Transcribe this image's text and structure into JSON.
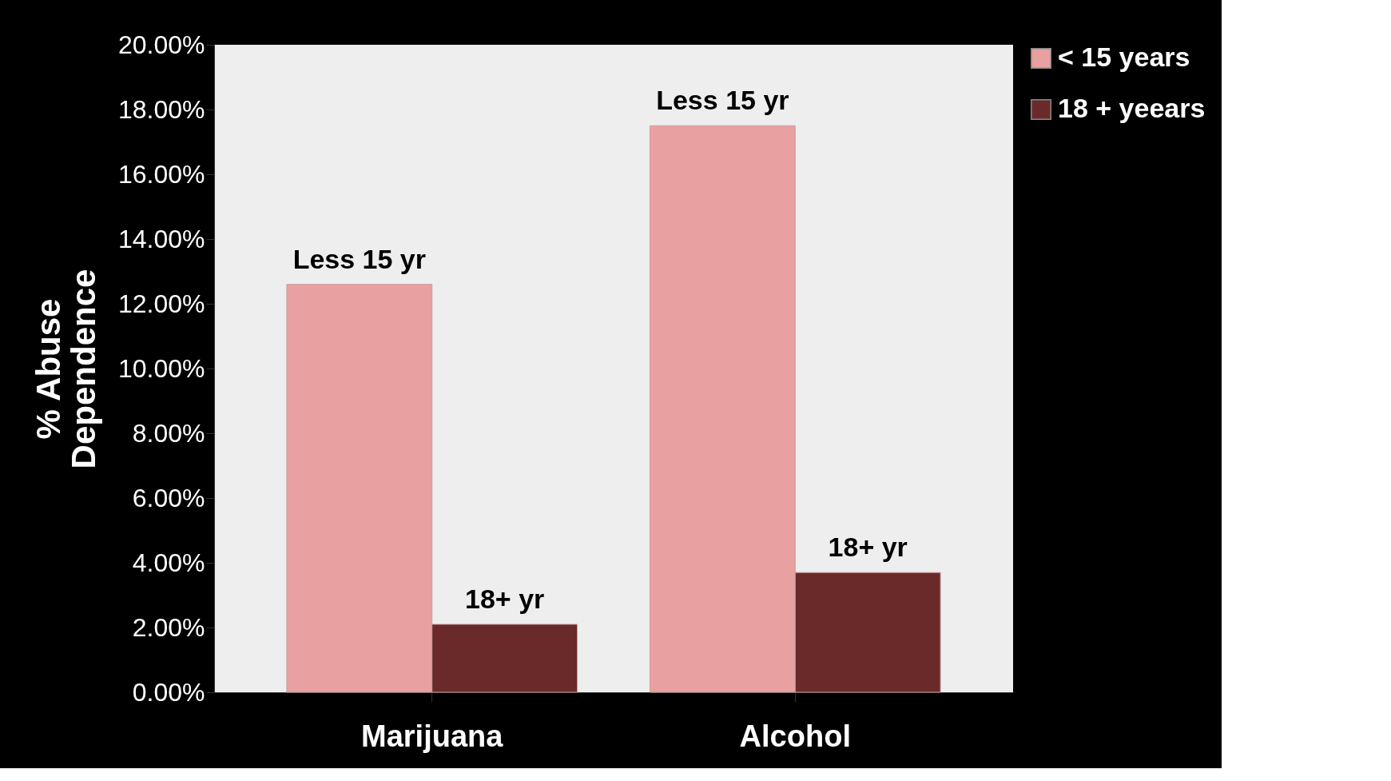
{
  "chart_data": {
    "type": "bar",
    "categories": [
      "Marijuana",
      "Alcohol"
    ],
    "ylabel": "% Abuse Dependence",
    "series": [
      {
        "name": "< 15 years",
        "color": "#e8a0a0",
        "values": [
          12.6,
          17.5
        ],
        "value_labels": [
          "Less 15 yr",
          "Less 15 yr"
        ]
      },
      {
        "name": "18 + yeears",
        "color": "#6b2a2a",
        "values": [
          2.1,
          3.7
        ],
        "value_labels": [
          "18+ yr",
          "18+ yr"
        ]
      }
    ],
    "ylim": [
      0,
      20
    ],
    "yticks": [
      {
        "value": 0,
        "label": "0.00%"
      },
      {
        "value": 2,
        "label": "2.00%"
      },
      {
        "value": 4,
        "label": "4.00%"
      },
      {
        "value": 6,
        "label": "6.00%"
      },
      {
        "value": 8,
        "label": "8.00%"
      },
      {
        "value": 10,
        "label": "10.00%"
      },
      {
        "value": 12,
        "label": "12.00%"
      },
      {
        "value": 14,
        "label": "14.00%"
      },
      {
        "value": 16,
        "label": "16.00%"
      },
      {
        "value": 18,
        "label": "18.00%"
      },
      {
        "value": 20,
        "label": "20.00%"
      }
    ],
    "grid": false,
    "legend": "right"
  }
}
